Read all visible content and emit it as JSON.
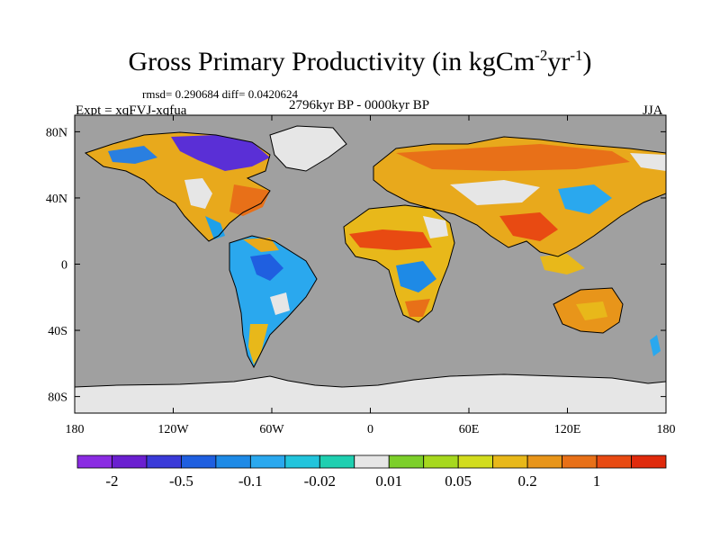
{
  "title": {
    "text": "Gross Primary Productivity (in kgCm",
    "sup1": "-2",
    "mid": "yr",
    "sup2": "-1",
    "end": ")"
  },
  "stats_line": "rmsd= 0.290684 diff= 0.0420624",
  "left_label": "Expt = xqFVJ-xqfua",
  "center_label": "2796kyr BP - 0000kyr BP",
  "right_label": "JJA",
  "axes": {
    "x_ticks": [
      {
        "lon": -180,
        "label": "180"
      },
      {
        "lon": -120,
        "label": "120W"
      },
      {
        "lon": -60,
        "label": "60W"
      },
      {
        "lon": 0,
        "label": "0"
      },
      {
        "lon": 60,
        "label": "60E"
      },
      {
        "lon": 120,
        "label": "120E"
      },
      {
        "lon": 180,
        "label": "180"
      }
    ],
    "y_ticks": [
      {
        "lat": 80,
        "label": "80N"
      },
      {
        "lat": 40,
        "label": "40N"
      },
      {
        "lat": 0,
        "label": "0"
      },
      {
        "lat": -40,
        "label": "40S"
      },
      {
        "lat": -80,
        "label": "80S"
      }
    ],
    "lon_range": [
      -180,
      180
    ],
    "lat_range": [
      -90,
      90
    ]
  },
  "colorbar": {
    "colors": [
      "#8a2be2",
      "#6a1fd0",
      "#3a3ad8",
      "#1f5fe0",
      "#1e8ae6",
      "#2aa8ee",
      "#22c4dc",
      "#1fcfb0",
      "#e6e6e6",
      "#7ccf2a",
      "#a6d81e",
      "#d2dc1e",
      "#e8b81a",
      "#e8951a",
      "#e87018",
      "#e84a12",
      "#e02a0c"
    ],
    "labels": [
      {
        "boundary": 1,
        "label": "-2"
      },
      {
        "boundary": 3,
        "label": "-0.5"
      },
      {
        "boundary": 5,
        "label": "-0.1"
      },
      {
        "boundary": 7,
        "label": "-0.02"
      },
      {
        "boundary": 9,
        "label": "0.01"
      },
      {
        "boundary": 11,
        "label": "0.05"
      },
      {
        "boundary": 13,
        "label": "0.2"
      },
      {
        "boundary": 15,
        "label": "1"
      }
    ]
  },
  "map_colors": {
    "ocean": "#a0a0a0",
    "land_zero": "#e6e6e6",
    "coast": "#000000"
  }
}
